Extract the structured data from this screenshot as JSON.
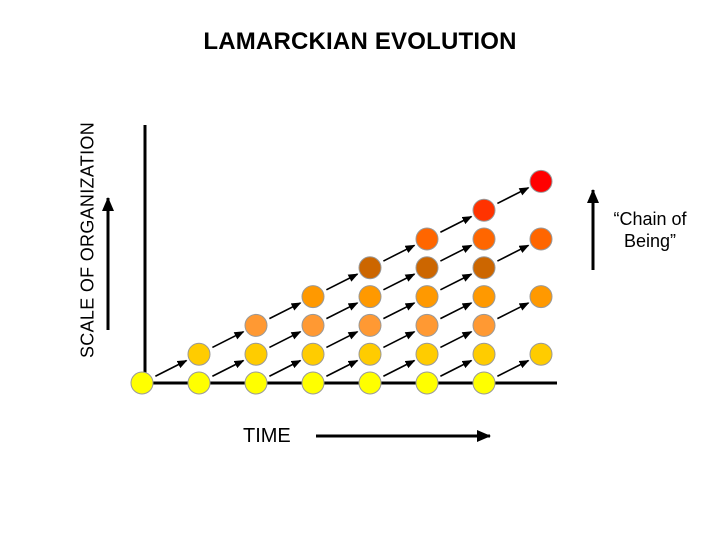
{
  "title": "LAMARCKIAN EVOLUTION",
  "y_axis_label": "SCALE OF ORGANIZATION",
  "x_axis_label": "TIME",
  "side_label": {
    "line1": "“Chain of",
    "line2": "Being”"
  },
  "colors": {
    "axis": "#000000",
    "level0": "#FFFF00",
    "level1": "#FFCC00",
    "level2": "#FF9933",
    "level3": "#FF9900",
    "level4": "#CC6600",
    "level5": "#FF6600",
    "level6": "#FF3300",
    "level7": "#FF0000"
  },
  "nodes": [
    {
      "t": 0,
      "level": 0
    },
    {
      "t": 1,
      "level": 0
    },
    {
      "t": 1,
      "level": 1
    },
    {
      "t": 2,
      "level": 0
    },
    {
      "t": 2,
      "level": 1
    },
    {
      "t": 2,
      "level": 2
    },
    {
      "t": 3,
      "level": 0
    },
    {
      "t": 3,
      "level": 1
    },
    {
      "t": 3,
      "level": 2
    },
    {
      "t": 3,
      "level": 3
    },
    {
      "t": 4,
      "level": 0
    },
    {
      "t": 4,
      "level": 1
    },
    {
      "t": 4,
      "level": 2
    },
    {
      "t": 4,
      "level": 3
    },
    {
      "t": 4,
      "level": 4
    },
    {
      "t": 5,
      "level": 0
    },
    {
      "t": 5,
      "level": 1
    },
    {
      "t": 5,
      "level": 2
    },
    {
      "t": 5,
      "level": 3
    },
    {
      "t": 5,
      "level": 4
    },
    {
      "t": 5,
      "level": 5
    },
    {
      "t": 6,
      "level": 0
    },
    {
      "t": 6,
      "level": 1
    },
    {
      "t": 6,
      "level": 2
    },
    {
      "t": 6,
      "level": 3
    },
    {
      "t": 6,
      "level": 4
    },
    {
      "t": 6,
      "level": 5
    },
    {
      "t": 6,
      "level": 6
    },
    {
      "t": 7,
      "level": 1
    },
    {
      "t": 7,
      "level": 3
    },
    {
      "t": 7,
      "level": 5
    },
    {
      "t": 7,
      "level": 7
    }
  ],
  "node_colors": {
    "0-0": "#FFFF00",
    "1-0": "#FFFF00",
    "1-1": "#FFCC00",
    "2-0": "#FFFF00",
    "2-1": "#FFCC00",
    "2-2": "#FF9933",
    "3-0": "#FFFF00",
    "3-1": "#FFCC00",
    "3-2": "#FF9933",
    "3-3": "#FF9900",
    "4-0": "#FFFF00",
    "4-1": "#FFCC00",
    "4-2": "#FF9933",
    "4-3": "#FF9900",
    "4-4": "#CC6600",
    "5-0": "#FFFF00",
    "5-1": "#FFCC00",
    "5-2": "#FF9933",
    "5-3": "#FF9900",
    "5-4": "#CC6600",
    "5-5": "#FF6600",
    "6-0": "#FFFF00",
    "6-1": "#FFCC00",
    "6-2": "#FF9933",
    "6-3": "#FF9900",
    "6-4": "#CC6600",
    "6-5": "#FF6600",
    "6-6": "#FF3300",
    "7-1": "#FFCC00",
    "7-3": "#FF9900",
    "7-5": "#FF6600",
    "7-7": "#FF0000"
  }
}
